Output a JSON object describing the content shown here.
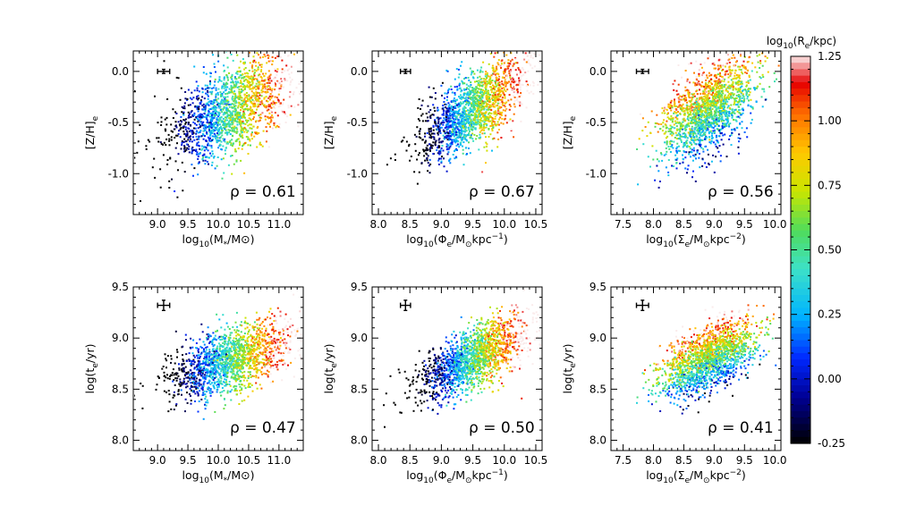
{
  "colorbar": {
    "label": "log10(Re/kpc)",
    "range": [
      -0.25,
      1.25
    ],
    "ticks": [
      "1.25",
      "1.00",
      "0.75",
      "0.50",
      "0.25",
      "0.00",
      "-0.25"
    ],
    "tick_values": [
      1.25,
      1.0,
      0.75,
      0.5,
      0.25,
      0.0,
      -0.25
    ]
  },
  "chart_data": [
    {
      "type": "scatter",
      "panel": "top-left",
      "xlabel": "log10(M*/M⊙)",
      "ylabel": "[Z/H]e",
      "xlim": [
        8.6,
        11.4
      ],
      "ylim": [
        -1.4,
        0.2
      ],
      "xticks": [
        "9.0",
        "9.5",
        "10.0",
        "10.5",
        "11.0"
      ],
      "xtick_values": [
        9.0,
        9.5,
        10.0,
        10.5,
        11.0
      ],
      "yticks": [
        "0.0",
        "-0.5",
        "-1.0"
      ],
      "ytick_values": [
        0.0,
        -0.5,
        -1.0
      ],
      "annotation": "ρ = 0.61",
      "rho": 0.61,
      "cloud": {
        "center_x": 10.2,
        "sd_x": 0.5,
        "slope": 0.25,
        "intercept_at_center": -0.38,
        "scatter_sd": 0.22,
        "color_trend": "increases with x"
      },
      "error_bar": {
        "x": 9.1,
        "y": 0.0,
        "dx": 0.1,
        "dy": 0.02
      }
    },
    {
      "type": "scatter",
      "panel": "top-middle",
      "xlabel": "log10(Φe/M⊙kpc⁻¹)",
      "ylabel": "[Z/H]e",
      "xlim": [
        7.9,
        10.6
      ],
      "ylim": [
        -1.4,
        0.2
      ],
      "xticks": [
        "8.0",
        "8.5",
        "9.0",
        "9.5",
        "10.0",
        "10.5"
      ],
      "xtick_values": [
        8.0,
        8.5,
        9.0,
        9.5,
        10.0,
        10.5
      ],
      "yticks": [
        "0.0",
        "-0.5",
        "-1.0"
      ],
      "ytick_values": [
        0.0,
        -0.5,
        -1.0
      ],
      "annotation": "ρ = 0.67",
      "rho": 0.67,
      "cloud": {
        "center_x": 9.5,
        "sd_x": 0.42,
        "slope": 0.38,
        "intercept_at_center": -0.38,
        "scatter_sd": 0.18,
        "color_trend": "increases with x"
      },
      "error_bar": {
        "x": 8.43,
        "y": 0.0,
        "dx": 0.08,
        "dy": 0.02
      }
    },
    {
      "type": "scatter",
      "panel": "top-right",
      "xlabel": "log10(Σe/M⊙kpc⁻²)",
      "ylabel": "[Z/H]e",
      "xlim": [
        7.3,
        10.1
      ],
      "ylim": [
        -1.4,
        0.2
      ],
      "xticks": [
        "7.5",
        "8.0",
        "8.5",
        "9.0",
        "9.5",
        "10.0"
      ],
      "xtick_values": [
        7.5,
        8.0,
        8.5,
        9.0,
        9.5,
        10.0
      ],
      "yticks": [
        "0.0",
        "-0.5",
        "-1.0"
      ],
      "ytick_values": [
        0.0,
        -0.5,
        -1.0
      ],
      "annotation": "ρ = 0.56",
      "rho": 0.56,
      "cloud": {
        "center_x": 8.9,
        "sd_x": 0.4,
        "slope": 0.35,
        "intercept_at_center": -0.38,
        "scatter_sd": 0.2,
        "color_trend": "high values at center"
      },
      "error_bar": {
        "x": 7.82,
        "y": 0.0,
        "dx": 0.1,
        "dy": 0.02
      }
    },
    {
      "type": "scatter",
      "panel": "bottom-left",
      "xlabel": "log10(M*/M⊙)",
      "ylabel": "log(te/yr)",
      "xlim": [
        8.6,
        11.4
      ],
      "ylim": [
        7.9,
        9.5
      ],
      "xticks": [
        "9.0",
        "9.5",
        "10.0",
        "10.5",
        "11.0"
      ],
      "xtick_values": [
        9.0,
        9.5,
        10.0,
        10.5,
        11.0
      ],
      "yticks": [
        "9.5",
        "9.0",
        "8.5",
        "8.0"
      ],
      "ytick_values": [
        9.5,
        9.0,
        8.5,
        8.0
      ],
      "annotation": "ρ = 0.47",
      "rho": 0.47,
      "cloud": {
        "center_x": 10.2,
        "sd_x": 0.5,
        "slope": 0.18,
        "intercept_at_center": 8.78,
        "scatter_sd": 0.16,
        "color_trend": "increases with x"
      },
      "error_bar": {
        "x": 9.1,
        "y": 9.32,
        "dx": 0.1,
        "dy": 0.05
      }
    },
    {
      "type": "scatter",
      "panel": "bottom-middle",
      "xlabel": "log10(Φe/M⊙kpc⁻¹)",
      "ylabel": "log(te/yr)",
      "xlim": [
        7.9,
        10.6
      ],
      "ylim": [
        7.9,
        9.5
      ],
      "xticks": [
        "8.0",
        "8.5",
        "9.0",
        "9.5",
        "10.0",
        "10.5"
      ],
      "xtick_values": [
        8.0,
        8.5,
        9.0,
        9.5,
        10.0,
        10.5
      ],
      "yticks": [
        "9.5",
        "9.0",
        "8.5",
        "8.0"
      ],
      "ytick_values": [
        9.5,
        9.0,
        8.5,
        8.0
      ],
      "annotation": "ρ = 0.50",
      "rho": 0.5,
      "cloud": {
        "center_x": 9.5,
        "sd_x": 0.42,
        "slope": 0.3,
        "intercept_at_center": 8.8,
        "scatter_sd": 0.15,
        "color_trend": "increases with x"
      },
      "error_bar": {
        "x": 8.43,
        "y": 9.32,
        "dx": 0.08,
        "dy": 0.05
      }
    },
    {
      "type": "scatter",
      "panel": "bottom-right",
      "xlabel": "log10(Σe/M⊙kpc⁻²)",
      "ylabel": "log(te/yr)",
      "xlim": [
        7.3,
        10.1
      ],
      "ylim": [
        7.9,
        9.5
      ],
      "xticks": [
        "7.5",
        "8.0",
        "8.5",
        "9.0",
        "9.5",
        "10.0"
      ],
      "xtick_values": [
        7.5,
        8.0,
        8.5,
        9.0,
        9.5,
        10.0
      ],
      "yticks": [
        "9.5",
        "9.0",
        "8.5",
        "8.0"
      ],
      "ytick_values": [
        9.5,
        9.0,
        8.5,
        8.0
      ],
      "annotation": "ρ = 0.41",
      "rho": 0.41,
      "cloud": {
        "center_x": 8.9,
        "sd_x": 0.4,
        "slope": 0.25,
        "intercept_at_center": 8.8,
        "scatter_sd": 0.15,
        "color_trend": "high values at center"
      },
      "error_bar": {
        "x": 7.82,
        "y": 9.32,
        "dx": 0.1,
        "dy": 0.05
      }
    }
  ]
}
